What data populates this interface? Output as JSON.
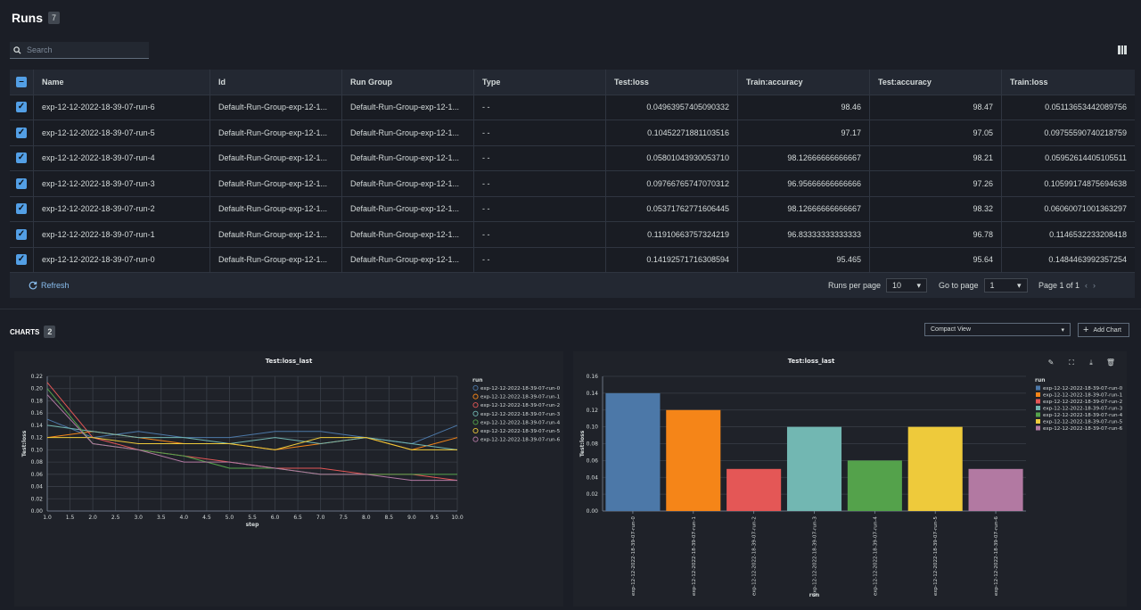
{
  "header": {
    "title": "Runs",
    "count": "7"
  },
  "search": {
    "placeholder": "Search"
  },
  "table": {
    "columns": [
      "Name",
      "Id",
      "Run Group",
      "Type",
      "Test:loss",
      "Train:accuracy",
      "Test:accuracy",
      "Train:loss"
    ],
    "rows": [
      [
        "exp-12-12-2022-18-39-07-run-6",
        "Default-Run-Group-exp-12-1...",
        "Default-Run-Group-exp-12-1...",
        "- -",
        "0.04963957405090332",
        "98.46",
        "98.47",
        "0.05113653442089756"
      ],
      [
        "exp-12-12-2022-18-39-07-run-5",
        "Default-Run-Group-exp-12-1...",
        "Default-Run-Group-exp-12-1...",
        "- -",
        "0.10452271881103516",
        "97.17",
        "97.05",
        "0.09755590740218759"
      ],
      [
        "exp-12-12-2022-18-39-07-run-4",
        "Default-Run-Group-exp-12-1...",
        "Default-Run-Group-exp-12-1...",
        "- -",
        "0.05801043930053710",
        "98.12666666666667",
        "98.21",
        "0.05952614405105511"
      ],
      [
        "exp-12-12-2022-18-39-07-run-3",
        "Default-Run-Group-exp-12-1...",
        "Default-Run-Group-exp-12-1...",
        "- -",
        "0.09766765747070312",
        "96.95666666666666",
        "97.26",
        "0.10599174875694638"
      ],
      [
        "exp-12-12-2022-18-39-07-run-2",
        "Default-Run-Group-exp-12-1...",
        "Default-Run-Group-exp-12-1...",
        "- -",
        "0.05371762771606445",
        "98.12666666666667",
        "98.32",
        "0.06060071001363297"
      ],
      [
        "exp-12-12-2022-18-39-07-run-1",
        "Default-Run-Group-exp-12-1...",
        "Default-Run-Group-exp-12-1...",
        "- -",
        "0.11910663757324219",
        "96.83333333333333",
        "96.78",
        "0.1146532233208418"
      ],
      [
        "exp-12-12-2022-18-39-07-run-0",
        "Default-Run-Group-exp-12-1...",
        "Default-Run-Group-exp-12-1...",
        "- -",
        "0.14192571716308594",
        "95.465",
        "95.64",
        "0.1484463992357254"
      ]
    ]
  },
  "footer": {
    "refresh": "Refresh",
    "runs_per_page_label": "Runs per page",
    "runs_per_page": "10",
    "go_to_page_label": "Go to page",
    "go_to_page": "1",
    "page_info": "Page 1 of 1"
  },
  "charts": {
    "label": "CHARTS",
    "count": "2",
    "view": "Compact View",
    "add_chart": "Add Chart"
  },
  "colors": {
    "run-0": "#4c78a8",
    "run-1": "#f58518",
    "run-2": "#e45756",
    "run-3": "#72b7b2",
    "run-4": "#54a24b",
    "run-5": "#eeca3b",
    "run-6": "#b279a2"
  },
  "chart_data": [
    {
      "type": "line",
      "title": "Test:loss_last",
      "xlabel": "step",
      "ylabel": "Test:loss",
      "legend_title": "run",
      "xlim": [
        1.0,
        10.0
      ],
      "ylim": [
        0.0,
        0.22
      ],
      "xticks": [
        "1.0",
        "1.5",
        "2.0",
        "2.5",
        "3.0",
        "3.5",
        "4.0",
        "4.5",
        "5.0",
        "5.5",
        "6.0",
        "6.5",
        "7.0",
        "7.5",
        "8.0",
        "8.5",
        "9.0",
        "9.5",
        "10.0"
      ],
      "yticks": [
        "0.00",
        "0.02",
        "0.04",
        "0.06",
        "0.08",
        "0.10",
        "0.12",
        "0.14",
        "0.16",
        "0.18",
        "0.20",
        "0.22"
      ],
      "x": [
        1,
        2,
        3,
        4,
        5,
        6,
        7,
        8,
        9,
        10
      ],
      "series": [
        {
          "name": "exp-12-12-2022-18-39-07-run-0",
          "values": [
            0.15,
            0.12,
            0.13,
            0.12,
            0.12,
            0.13,
            0.13,
            0.12,
            0.11,
            0.14
          ]
        },
        {
          "name": "exp-12-12-2022-18-39-07-run-1",
          "values": [
            0.12,
            0.13,
            0.12,
            0.11,
            0.11,
            0.1,
            0.11,
            0.12,
            0.1,
            0.12
          ]
        },
        {
          "name": "exp-12-12-2022-18-39-07-run-2",
          "values": [
            0.21,
            0.12,
            0.1,
            0.09,
            0.08,
            0.07,
            0.07,
            0.06,
            0.06,
            0.05
          ]
        },
        {
          "name": "exp-12-12-2022-18-39-07-run-3",
          "values": [
            0.14,
            0.13,
            0.12,
            0.12,
            0.11,
            0.12,
            0.11,
            0.12,
            0.11,
            0.1
          ]
        },
        {
          "name": "exp-12-12-2022-18-39-07-run-4",
          "values": [
            0.2,
            0.11,
            0.1,
            0.09,
            0.07,
            0.07,
            0.06,
            0.06,
            0.06,
            0.06
          ]
        },
        {
          "name": "exp-12-12-2022-18-39-07-run-5",
          "values": [
            0.12,
            0.12,
            0.11,
            0.11,
            0.11,
            0.1,
            0.12,
            0.12,
            0.1,
            0.1
          ]
        },
        {
          "name": "exp-12-12-2022-18-39-07-run-6",
          "values": [
            0.19,
            0.11,
            0.1,
            0.08,
            0.08,
            0.07,
            0.06,
            0.06,
            0.05,
            0.05
          ]
        }
      ]
    },
    {
      "type": "bar",
      "title": "Test:loss_last",
      "xlabel": "run",
      "ylabel": "Test:loss",
      "legend_title": "run",
      "ylim": [
        0.0,
        0.16
      ],
      "yticks": [
        "0.00",
        "0.02",
        "0.04",
        "0.06",
        "0.08",
        "0.10",
        "0.12",
        "0.14",
        "0.16"
      ],
      "categories": [
        "exp-12-12-2022-18-39-07-run-0",
        "exp-12-12-2022-18-39-07-run-1",
        "exp-12-12-2022-18-39-07-run-2",
        "exp-12-12-2022-18-39-07-run-3",
        "exp-12-12-2022-18-39-07-run-4",
        "exp-12-12-2022-18-39-07-run-5",
        "exp-12-12-2022-18-39-07-run-6"
      ],
      "values": [
        0.14,
        0.12,
        0.05,
        0.1,
        0.06,
        0.1,
        0.05
      ]
    }
  ]
}
